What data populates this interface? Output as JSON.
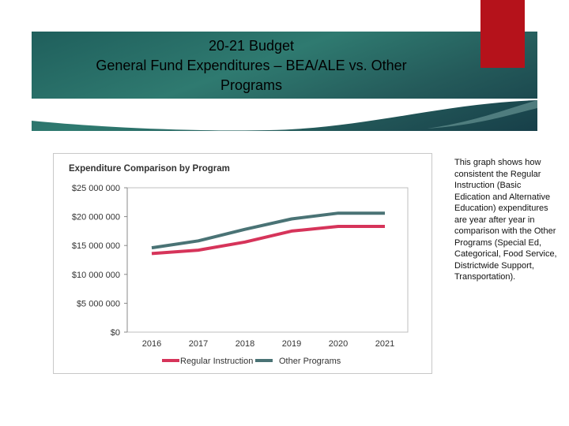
{
  "slide": {
    "title_lines": [
      "20-21 Budget",
      "General Fund Expenditures – BEA/ALE vs. Other",
      "Programs"
    ],
    "side_note": "This graph shows how consistent the Regular Instruction (Basic Edication and Alternative Education) expenditures are year after year in comparison with the Other Programs (Special Ed, Categorical, Food Service, Districtwide Support, Transportation)."
  },
  "colors": {
    "banner": "#2f7a70",
    "accent_tab": "#b5121b",
    "regular": "#d6345a",
    "other": "#4a7375"
  },
  "chart_data": {
    "type": "line",
    "title": "Expenditure Comparison by Program",
    "x": [
      "2016",
      "2017",
      "2018",
      "2019",
      "2020",
      "2021"
    ],
    "ylim": [
      0,
      25000000
    ],
    "yticks": [
      0,
      5000000,
      10000000,
      15000000,
      20000000,
      25000000
    ],
    "ytick_labels": [
      "$0",
      "$5 000 000",
      "$10 000 000",
      "$15 000 000",
      "$20 000 000",
      "$25 000 000"
    ],
    "grid": false,
    "legend": "bottom",
    "series": [
      {
        "name": "Regular Instruction",
        "color": "#d6345a",
        "values": [
          13600000,
          14200000,
          15600000,
          17500000,
          18300000,
          18300000
        ]
      },
      {
        "name": "Other Programs",
        "color": "#4a7375",
        "values": [
          14600000,
          15800000,
          17800000,
          19600000,
          20600000,
          20600000
        ]
      }
    ]
  }
}
